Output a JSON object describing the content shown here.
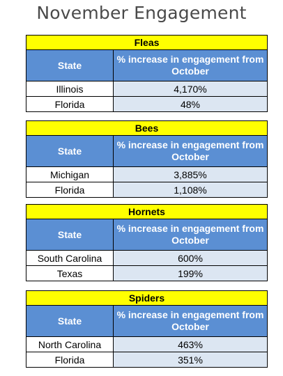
{
  "title": "November Engagement",
  "columns": {
    "state": "State",
    "increase": "% increase in engagement from October"
  },
  "sections": [
    {
      "name": "Fleas",
      "rows": [
        {
          "state": "Illinois",
          "value": "4,170%"
        },
        {
          "state": "Florida",
          "value": "48%"
        }
      ]
    },
    {
      "name": "Bees",
      "rows": [
        {
          "state": "Michigan",
          "value": "3,885%"
        },
        {
          "state": "Florida",
          "value": "1,108%"
        }
      ]
    },
    {
      "name": "Hornets",
      "rows": [
        {
          "state": "South Carolina",
          "value": "600%"
        },
        {
          "state": "Texas",
          "value": "199%"
        }
      ]
    },
    {
      "name": "Spiders",
      "rows": [
        {
          "state": "North Carolina",
          "value": "463%"
        },
        {
          "state": "Florida",
          "value": "351%"
        }
      ]
    }
  ]
}
